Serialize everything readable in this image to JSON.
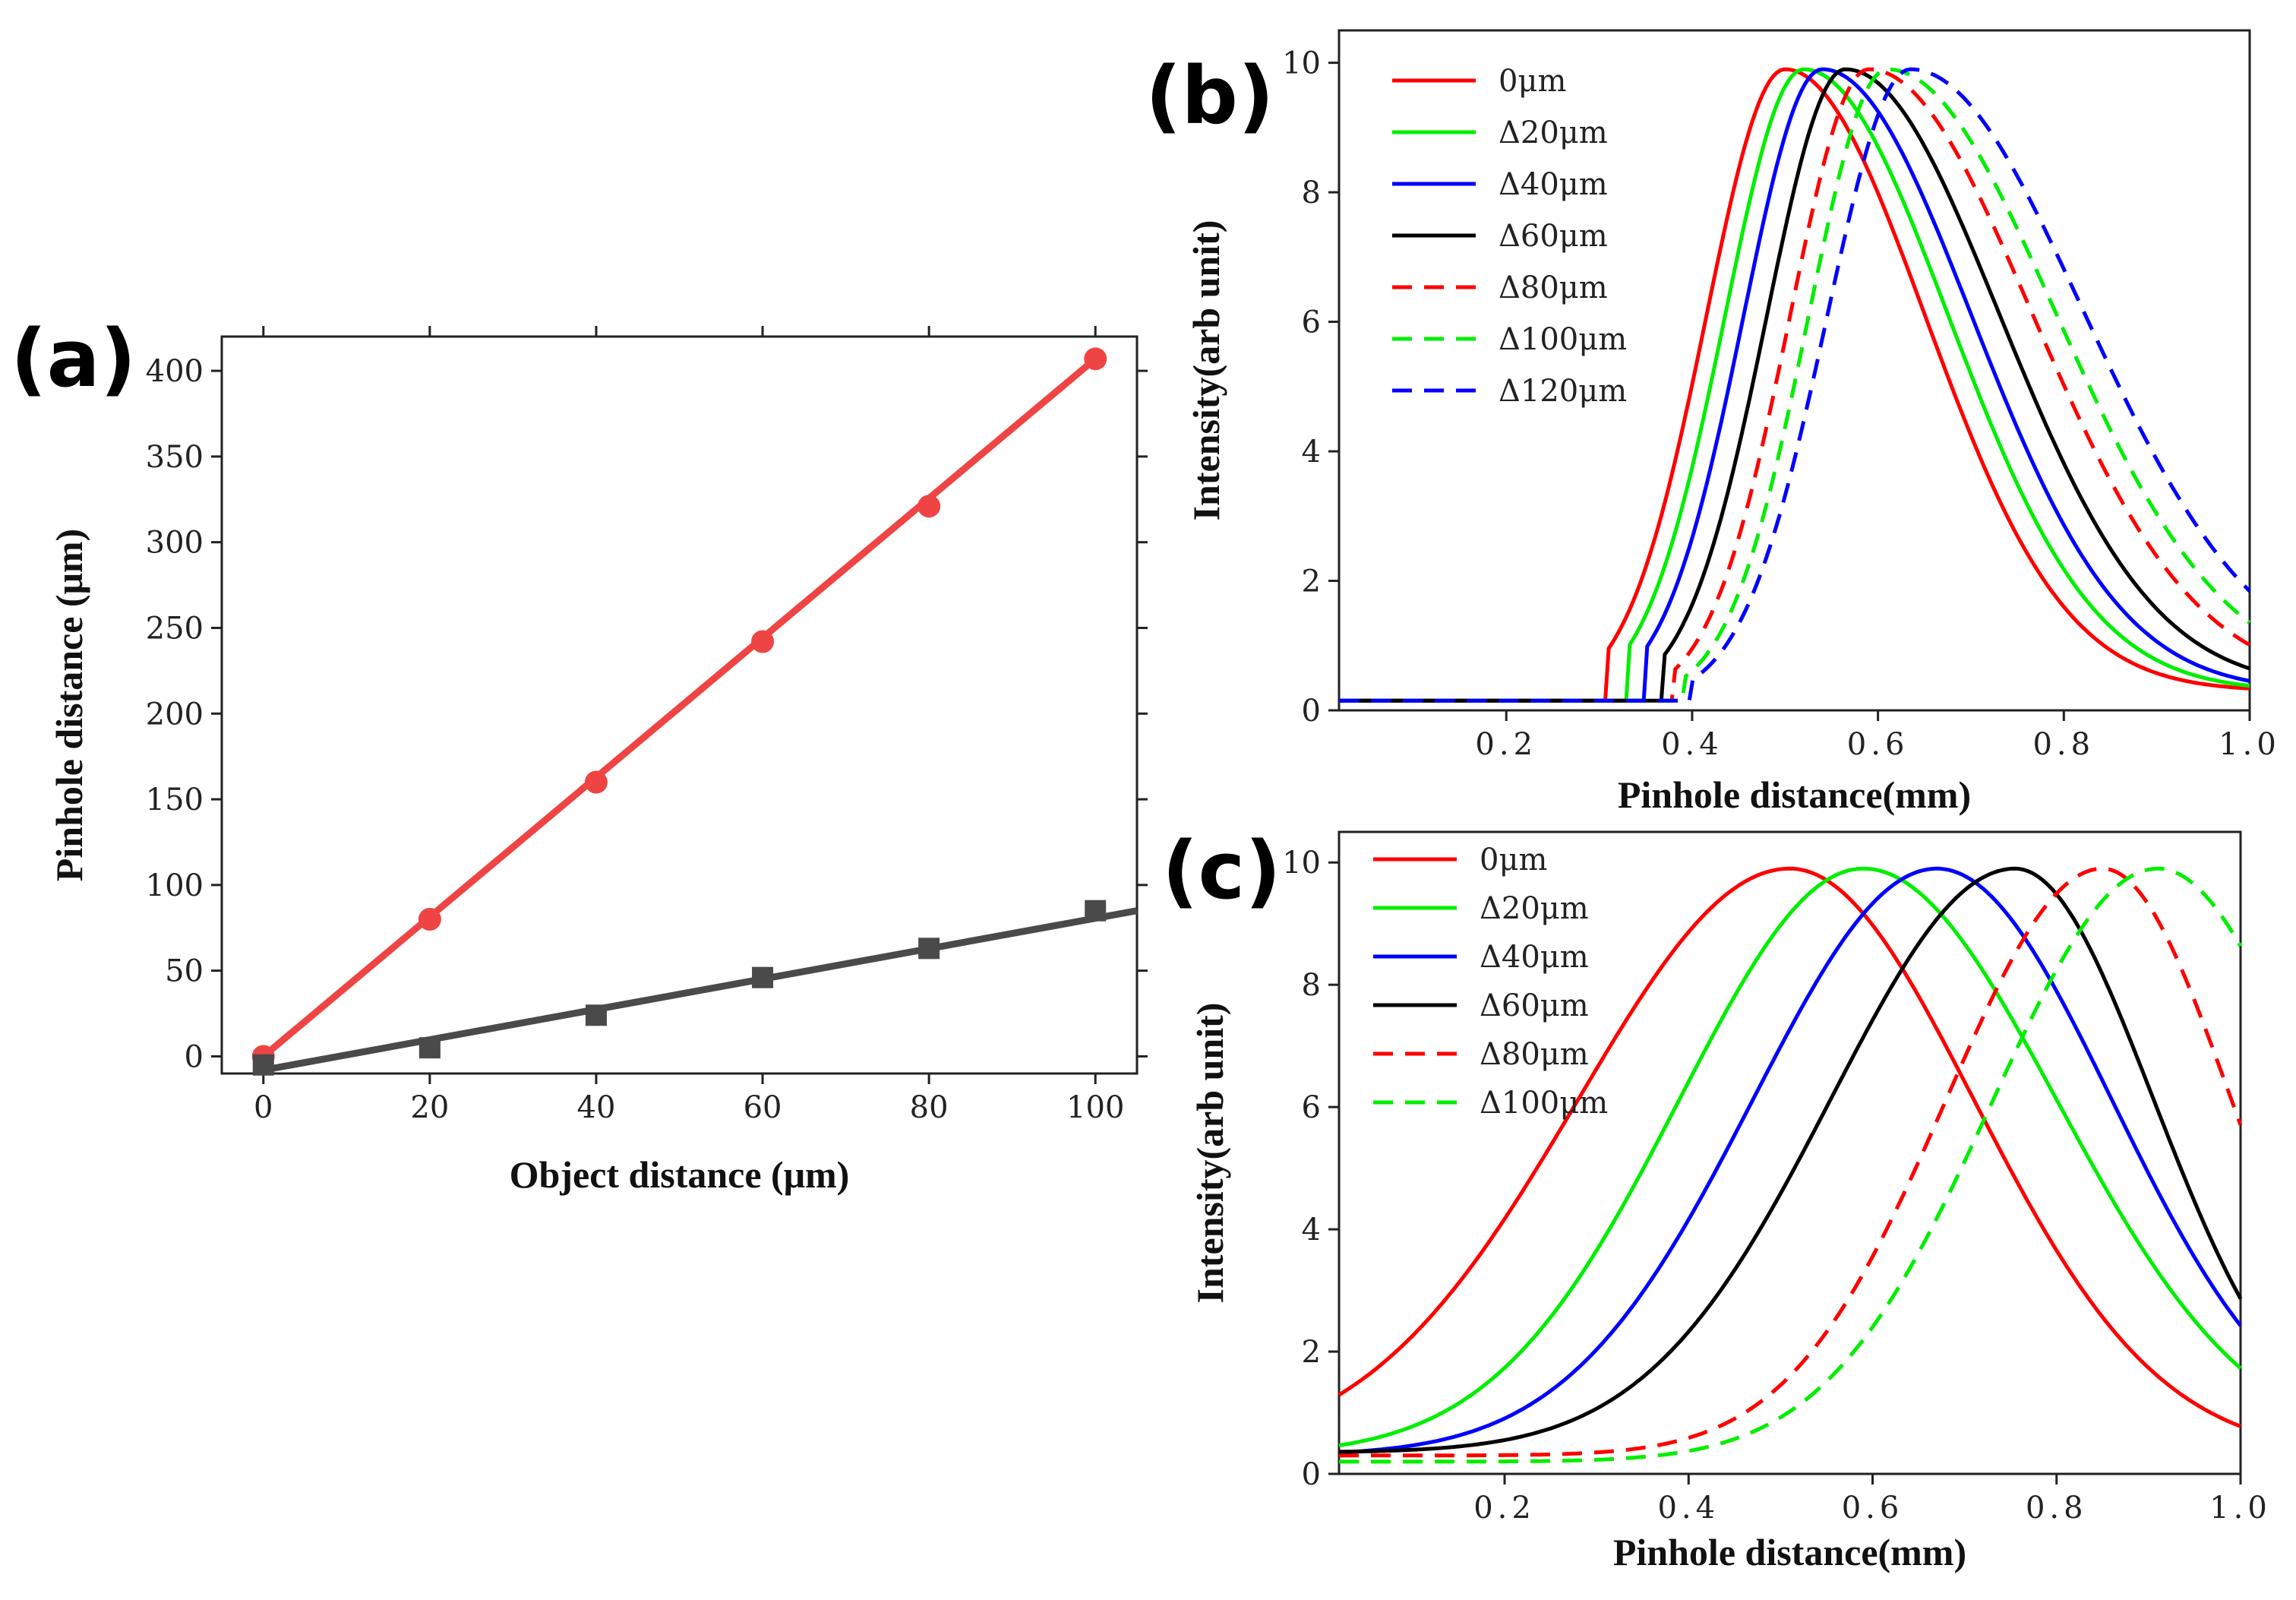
{
  "chart_data": [
    {
      "panel": "(a)",
      "type": "scatter",
      "xlabel": "Object distance (μm)",
      "ylabel": "Pinhole distance (μm)",
      "xlim": [
        -5,
        105
      ],
      "ylim": [
        -10,
        420
      ],
      "xticks": [
        0,
        20,
        40,
        60,
        80,
        100
      ],
      "xtick_labels": [
        "0",
        "20",
        "40",
        "60",
        "80",
        "100"
      ],
      "yticks": [
        0,
        50,
        100,
        150,
        200,
        250,
        300,
        350,
        400
      ],
      "ytick_labels": [
        "0",
        "50",
        "100",
        "150",
        "200",
        "250",
        "300",
        "350",
        "400"
      ],
      "series": [
        {
          "name": "red",
          "color": "#ef4444",
          "marker": "circle",
          "x": [
            0,
            20,
            40,
            60,
            80,
            100
          ],
          "y": [
            0,
            80,
            160,
            242,
            321,
            407
          ],
          "fit": [
            [
              0,
              0
            ],
            [
              100,
              407
            ]
          ]
        },
        {
          "name": "gray",
          "color": "#4a4a4a",
          "marker": "square",
          "x": [
            0,
            20,
            40,
            60,
            80,
            100
          ],
          "y": [
            -5,
            5,
            24,
            46,
            63,
            85
          ],
          "fit": [
            [
              0,
              -8
            ],
            [
              105,
              85
            ]
          ]
        }
      ]
    },
    {
      "panel": "(b)",
      "type": "line",
      "xlabel": "Pinhole distance(mm)",
      "ylabel": "Intensity(arb unit)",
      "xlim": [
        0.02,
        1.0
      ],
      "ylim": [
        0,
        10.5
      ],
      "xticks": [
        0.2,
        0.4,
        0.6,
        0.8,
        1.0
      ],
      "xtick_labels": [
        "0.2",
        "0.4",
        "0.6",
        "0.8",
        "1.0"
      ],
      "yticks": [
        0,
        2,
        4,
        6,
        8,
        10
      ],
      "ytick_labels": [
        "0",
        "2",
        "4",
        "6",
        "8",
        "10"
      ],
      "series": [
        {
          "name": "0μm",
          "color": "#ff0000",
          "dash": false,
          "peak": 0.5,
          "sl": 0.085,
          "sr": 0.15,
          "left_cut": 0.31,
          "base": 0.15,
          "tail": 0.3
        },
        {
          "name": "Δ20μm",
          "color": "#00ee00",
          "dash": false,
          "peak": 0.52,
          "sl": 0.085,
          "sr": 0.155,
          "left_cut": 0.33,
          "base": 0.15,
          "tail": 0.3
        },
        {
          "name": "Δ40μm",
          "color": "#0000ff",
          "dash": false,
          "peak": 0.54,
          "sl": 0.085,
          "sr": 0.16,
          "left_cut": 0.35,
          "base": 0.15,
          "tail": 0.3
        },
        {
          "name": "Δ60μm",
          "color": "#000000",
          "dash": false,
          "peak": 0.565,
          "sl": 0.085,
          "sr": 0.165,
          "left_cut": 0.37,
          "base": 0.15,
          "tail": 0.35
        },
        {
          "name": "Δ80μm",
          "color": "#ff0000",
          "dash": true,
          "peak": 0.59,
          "sl": 0.085,
          "sr": 0.175,
          "left_cut": 0.38,
          "base": 0.15,
          "tail": 0.4
        },
        {
          "name": "Δ100μm",
          "color": "#00ee00",
          "dash": true,
          "peak": 0.61,
          "sl": 0.085,
          "sr": 0.18,
          "left_cut": 0.39,
          "base": 0.15,
          "tail": 0.45
        },
        {
          "name": "Δ120μm",
          "color": "#0000ff",
          "dash": true,
          "peak": 0.635,
          "sl": 0.09,
          "sr": 0.185,
          "left_cut": 0.4,
          "base": 0.15,
          "tail": 0.5
        }
      ]
    },
    {
      "panel": "(c)",
      "type": "line",
      "xlabel": "Pinhole distance(mm)",
      "ylabel": "Intensity(arb unit)",
      "xlim": [
        0.02,
        1.0
      ],
      "ylim": [
        0,
        10.5
      ],
      "xticks": [
        0.2,
        0.4,
        0.6,
        0.8,
        1.0
      ],
      "xtick_labels": [
        "0.2",
        "0.4",
        "0.6",
        "0.8",
        "1.0"
      ],
      "yticks": [
        0,
        2,
        4,
        6,
        8,
        10
      ],
      "ytick_labels": [
        "0",
        "2",
        "4",
        "6",
        "8",
        "10"
      ],
      "series": [
        {
          "name": "0μm",
          "color": "#ff0000",
          "dash": false,
          "peak": 0.51,
          "sl": 0.23,
          "sr": 0.2,
          "base": 0.3
        },
        {
          "name": "Δ20μm",
          "color": "#00ee00",
          "dash": false,
          "peak": 0.59,
          "sl": 0.2,
          "sr": 0.21,
          "base": 0.3
        },
        {
          "name": "Δ40μm",
          "color": "#0000ff",
          "dash": false,
          "peak": 0.67,
          "sl": 0.2,
          "sr": 0.19,
          "base": 0.3
        },
        {
          "name": "Δ60μm",
          "color": "#000000",
          "dash": false,
          "peak": 0.755,
          "sl": 0.2,
          "sr": 0.15,
          "base": 0.35
        },
        {
          "name": "Δ80μm",
          "color": "#ff0000",
          "dash": true,
          "peak": 0.85,
          "sl": 0.17,
          "sr": 0.14,
          "base": 0.3
        },
        {
          "name": "Δ100μm",
          "color": "#00ee00",
          "dash": true,
          "peak": 0.91,
          "sl": 0.18,
          "sr": 0.17,
          "base": 0.2
        }
      ]
    }
  ]
}
